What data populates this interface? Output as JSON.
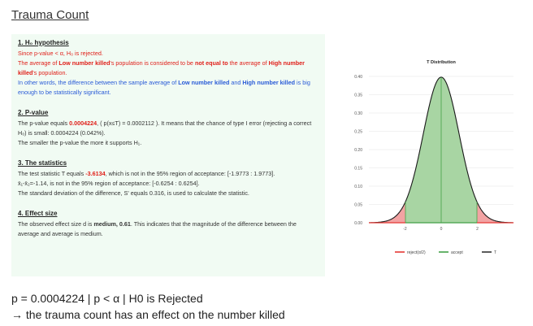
{
  "page_title": "Trauma Count",
  "panel": {
    "s1": {
      "heading": "1. H₀ hypothesis",
      "line1": "Since p-value < α, H₀ is rejected.",
      "line2a": "The average of ",
      "line2b": "Low number killed",
      "line2c": "'s population is considered to be ",
      "line2d": "not equal to",
      "line2e": " the average of ",
      "line2f": "High number",
      "line3a": "killed",
      "line3b": "'s population.",
      "line4a": "In other words, the difference between the sample average of ",
      "line4b": "Low number killed",
      "line4c": " and ",
      "line4d": "High number killed",
      "line4e": " is big",
      "line5": "enough to be statistically significant."
    },
    "s2": {
      "heading": "2. P-value",
      "line1a": "The p-value equals ",
      "line1b": "0.0004224",
      "line1c": ", ( p(x≤T) = 0.0002112 ). It means that the chance of type I error (rejecting a correct",
      "line2": "H₀) is small: 0.0004224 (0.042%).",
      "line3": "The smaller the p-value the more it supports H₁."
    },
    "s3": {
      "heading": "3. The statistics",
      "line1a": "The test statistic T equals ",
      "line1b": "-3.6134",
      "line1c": ", which is not in the 95% region of acceptance: [-1.9773 : 1.9773].",
      "line2": "x̄₁-x̄₂=-1.14, is not in the 95% region of acceptance: [-0.6254 : 0.6254].",
      "line3": "The standard deviation of the difference, S' equals 0.316, is used to calculate the statistic."
    },
    "s4": {
      "heading": "4. Effect size",
      "line1a": "The observed effect size d is ",
      "line1b": "medium, 0.61",
      "line1c": ". This indicates that the magnitude of the difference between the",
      "line2": "average and average is medium."
    }
  },
  "chart_data": {
    "type": "area",
    "title": "T Distribution",
    "xlim": [
      -4,
      4
    ],
    "ylim": [
      0,
      0.4
    ],
    "yticks": [
      "0.40",
      "0.35",
      "0.30",
      "0.25",
      "0.20",
      "0.15",
      "0.10",
      "0.05",
      "0.00"
    ],
    "xticks": [
      "-2",
      "0",
      "2"
    ],
    "grid": true,
    "legend_placement": "bottom",
    "critical_value": 1.9773,
    "series": [
      {
        "name": "reject(α/2)",
        "color": "#e53935"
      },
      {
        "name": "accept",
        "color": "#43a047"
      },
      {
        "name": "T",
        "color": "#333333"
      }
    ]
  },
  "result": {
    "line1": "p = 0.0004224 | p < α | H0 is Rejected",
    "line2": "→ the trauma count has an effect on the number killed"
  }
}
